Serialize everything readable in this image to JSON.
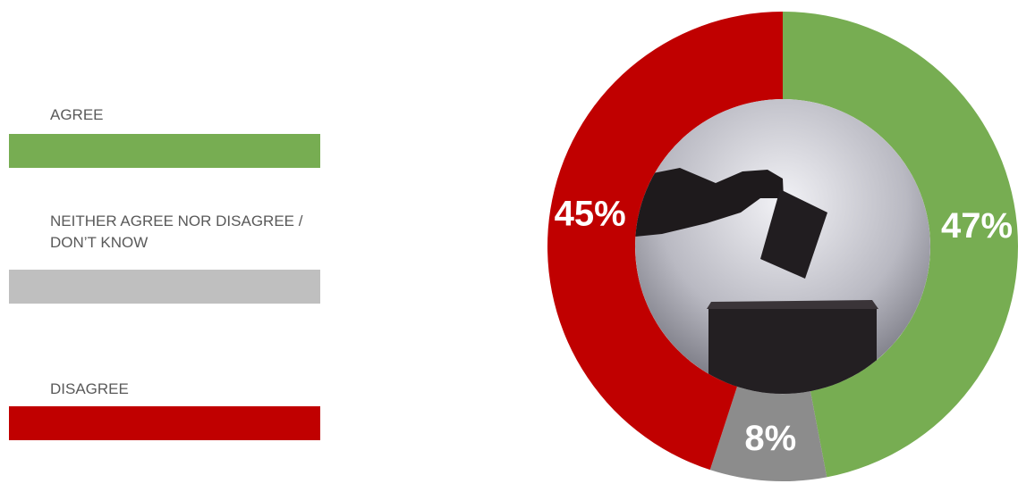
{
  "chart_data": {
    "type": "donut",
    "categories": [
      "AGREE",
      "NEITHER AGREE NOR DISAGREE / DON’T KNOW",
      "DISAGREE"
    ],
    "values": [
      47,
      8,
      45
    ],
    "value_labels": [
      "47%",
      "8%",
      "45%"
    ],
    "colors": [
      "#77ad52",
      "#8c8c8c",
      "#c00000"
    ],
    "legend_colors": [
      "#77ad52",
      "#bfbfbf",
      "#c00000"
    ]
  }
}
